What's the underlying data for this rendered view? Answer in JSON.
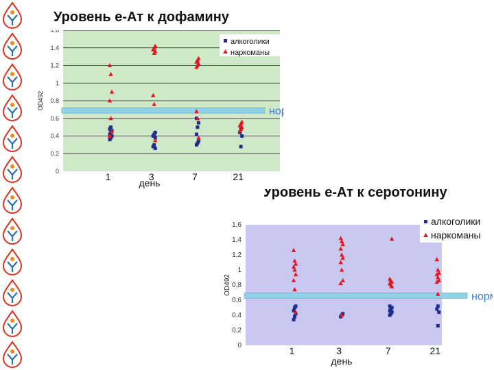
{
  "colors": {
    "alc": "#1f2d8c",
    "nar": "#e8141c",
    "norm": "#8fd3e8",
    "bg1": "#cfe8c8",
    "bg2": "#c8c8f0"
  },
  "titles": {
    "chart1": "Уровень е-Ат к дофамину",
    "chart2": "Уровень е-Ат к серотонину"
  },
  "chart_data": [
    {
      "type": "scatter",
      "title": "Уровень е-Ат к дофамину",
      "xlabel": "день",
      "ylabel": "OD492",
      "categories": [
        "1",
        "3",
        "7",
        "21"
      ],
      "yticks": [
        "0",
        "0.2",
        "0.4",
        "0.6",
        "0.8",
        "1",
        "1.2",
        "1.4",
        "1.6"
      ],
      "ylim": [
        0,
        1.6
      ],
      "grid": true,
      "legend": "top-right",
      "norm_label": "норма",
      "norm_value": 0.69,
      "series": [
        {
          "name": "алкоголики",
          "marker": "square",
          "color": "#1f2d8c",
          "points": [
            [
              0,
              0.36
            ],
            [
              0,
              0.38
            ],
            [
              0,
              0.4
            ],
            [
              0,
              0.42
            ],
            [
              0,
              0.44
            ],
            [
              0,
              0.46
            ],
            [
              0,
              0.48
            ],
            [
              0,
              0.5
            ],
            [
              1,
              0.26
            ],
            [
              1,
              0.28
            ],
            [
              1,
              0.3
            ],
            [
              1,
              0.38
            ],
            [
              1,
              0.4
            ],
            [
              1,
              0.42
            ],
            [
              1,
              0.44
            ],
            [
              2,
              0.3
            ],
            [
              2,
              0.32
            ],
            [
              2,
              0.34
            ],
            [
              2,
              0.42
            ],
            [
              2,
              0.5
            ],
            [
              2,
              0.55
            ],
            [
              2,
              0.6
            ],
            [
              3,
              0.28
            ],
            [
              3,
              0.4
            ],
            [
              3,
              0.44
            ],
            [
              3,
              0.48
            ]
          ]
        },
        {
          "name": "наркоманы",
          "marker": "triangle",
          "color": "#e8141c",
          "points": [
            [
              0,
              1.2
            ],
            [
              0,
              1.1
            ],
            [
              0,
              0.9
            ],
            [
              0,
              0.8
            ],
            [
              0,
              0.6
            ],
            [
              0,
              0.45
            ],
            [
              0,
              0.4
            ],
            [
              1,
              1.34
            ],
            [
              1,
              1.36
            ],
            [
              1,
              1.38
            ],
            [
              1,
              1.4
            ],
            [
              1,
              1.42
            ],
            [
              1,
              0.86
            ],
            [
              1,
              0.76
            ],
            [
              1,
              0.35
            ],
            [
              2,
              1.18
            ],
            [
              2,
              1.2
            ],
            [
              2,
              1.22
            ],
            [
              2,
              1.24
            ],
            [
              2,
              1.26
            ],
            [
              2,
              1.28
            ],
            [
              2,
              0.68
            ],
            [
              2,
              0.6
            ],
            [
              2,
              0.38
            ],
            [
              3,
              0.46
            ],
            [
              3,
              0.48
            ],
            [
              3,
              0.5
            ],
            [
              3,
              0.52
            ],
            [
              3,
              0.54
            ],
            [
              3,
              0.56
            ]
          ]
        }
      ]
    },
    {
      "type": "scatter",
      "title": "Уровень е-Ат к серотонину",
      "xlabel": "день",
      "ylabel": "OD492",
      "categories": [
        "1",
        "3",
        "7",
        "21"
      ],
      "yticks": [
        "0",
        "0,2",
        "0,4",
        "0,6",
        "0,8",
        "1",
        "1,2",
        "1,4",
        "1,6"
      ],
      "ylim": [
        0,
        1.6
      ],
      "grid": false,
      "legend": "top-right",
      "norm_label": "норма",
      "norm_value": 0.66,
      "series": [
        {
          "name": "алкоголики",
          "marker": "square",
          "color": "#1f2d8c",
          "points": [
            [
              0,
              0.34
            ],
            [
              0,
              0.38
            ],
            [
              0,
              0.42
            ],
            [
              0,
              0.46
            ],
            [
              0,
              0.5
            ],
            [
              0,
              0.52
            ],
            [
              1,
              0.38
            ],
            [
              1,
              0.4
            ],
            [
              1,
              0.42
            ],
            [
              2,
              0.4
            ],
            [
              2,
              0.42
            ],
            [
              2,
              0.44
            ],
            [
              2,
              0.46
            ],
            [
              2,
              0.48
            ],
            [
              2,
              0.5
            ],
            [
              2,
              0.52
            ],
            [
              3,
              0.26
            ],
            [
              3,
              0.44
            ],
            [
              3,
              0.48
            ],
            [
              3,
              0.52
            ]
          ]
        },
        {
          "name": "наркоманы",
          "marker": "triangle",
          "color": "#e8141c",
          "points": [
            [
              0,
              1.26
            ],
            [
              0,
              1.12
            ],
            [
              0,
              1.08
            ],
            [
              0,
              1.04
            ],
            [
              0,
              1.0
            ],
            [
              0,
              0.94
            ],
            [
              0,
              0.86
            ],
            [
              0,
              0.74
            ],
            [
              0,
              0.44
            ],
            [
              1,
              1.42
            ],
            [
              1,
              1.38
            ],
            [
              1,
              1.34
            ],
            [
              1,
              1.28
            ],
            [
              1,
              1.2
            ],
            [
              1,
              1.16
            ],
            [
              1,
              1.1
            ],
            [
              1,
              1.0
            ],
            [
              1,
              0.86
            ],
            [
              1,
              0.82
            ],
            [
              1,
              0.4
            ],
            [
              2,
              1.41
            ],
            [
              2,
              0.88
            ],
            [
              2,
              0.86
            ],
            [
              2,
              0.84
            ],
            [
              2,
              0.82
            ],
            [
              2,
              0.8
            ],
            [
              2,
              0.78
            ],
            [
              3,
              1.14
            ],
            [
              3,
              1.0
            ],
            [
              3,
              0.96
            ],
            [
              3,
              0.94
            ],
            [
              3,
              0.9
            ],
            [
              3,
              0.86
            ],
            [
              3,
              0.84
            ],
            [
              3,
              0.68
            ]
          ]
        }
      ]
    }
  ]
}
